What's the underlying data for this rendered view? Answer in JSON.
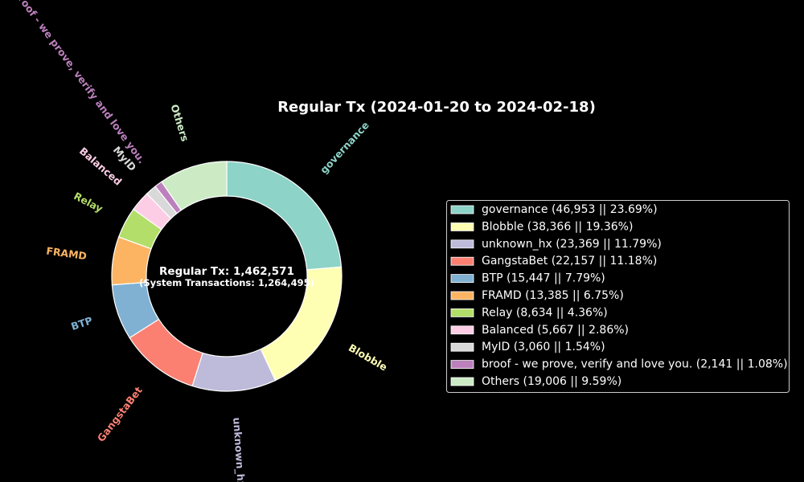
{
  "chart_data": {
    "type": "pie",
    "title": "Regular Tx (2024-01-20 to 2024-02-18)",
    "center_text": {
      "line1": "Regular Tx: 1,462,571",
      "line2": "(System Transactions: 1,264,495)"
    },
    "slices": [
      {
        "label": "governance",
        "value": 46953,
        "percent": 23.69,
        "color": "#8dd3c7",
        "legend": "governance (46,953 || 23.69%)"
      },
      {
        "label": "Blobble",
        "value": 38366,
        "percent": 19.36,
        "color": "#ffffb3",
        "legend": "Blobble (38,366 || 19.36%)"
      },
      {
        "label": "unknown_hx",
        "value": 23369,
        "percent": 11.79,
        "color": "#bebada",
        "legend": "unknown_hx (23,369 || 11.79%)"
      },
      {
        "label": "GangstaBet",
        "value": 22157,
        "percent": 11.18,
        "color": "#fb8072",
        "legend": "GangstaBet (22,157 || 11.18%)"
      },
      {
        "label": "BTP",
        "value": 15447,
        "percent": 7.79,
        "color": "#80b1d3",
        "legend": "BTP (15,447 || 7.79%)"
      },
      {
        "label": "FRAMD",
        "value": 13385,
        "percent": 6.75,
        "color": "#fdb462",
        "legend": "FRAMD (13,385 || 6.75%)"
      },
      {
        "label": "Relay",
        "value": 8634,
        "percent": 4.36,
        "color": "#b3de69",
        "legend": "Relay (8,634 || 4.36%)"
      },
      {
        "label": "Balanced",
        "value": 5667,
        "percent": 2.86,
        "color": "#fccde5",
        "legend": "Balanced (5,667 || 2.86%)"
      },
      {
        "label": "MyID",
        "value": 3060,
        "percent": 1.54,
        "color": "#d9d9d9",
        "legend": "MyID (3,060 || 1.54%)"
      },
      {
        "label": "broof - we prove, verify and love you.",
        "value": 2141,
        "percent": 1.08,
        "color": "#bc80bd",
        "legend": "broof - we prove, verify and love you. (2,141 || 1.08%)"
      },
      {
        "label": "Others",
        "value": 19006,
        "percent": 9.59,
        "color": "#ccebc5",
        "legend": "Others (19,006 || 9.59%)"
      }
    ],
    "start_angle": "top",
    "direction": "clockwise",
    "legend_position": "right"
  }
}
